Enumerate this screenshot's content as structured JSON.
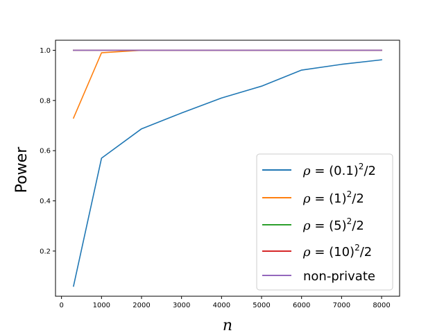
{
  "chart_data": {
    "type": "line",
    "xlabel": "n",
    "ylabel": "Power",
    "xlim": [
      -150,
      8450
    ],
    "ylim": [
      0.02,
      1.04
    ],
    "xticks": [
      0,
      1000,
      2000,
      3000,
      4000,
      5000,
      6000,
      7000,
      8000
    ],
    "yticks": [
      0.2,
      0.4,
      0.6,
      0.8,
      1.0
    ],
    "grid": false,
    "legend_position": "lower right",
    "series": [
      {
        "name": "ρ = (0.1)²/2",
        "color": "#1f77b4",
        "x": [
          300,
          1000,
          2000,
          3000,
          4000,
          5000,
          6000,
          7000,
          8000
        ],
        "y": [
          0.06,
          0.57,
          0.687,
          0.75,
          0.81,
          0.857,
          0.921,
          0.944,
          0.962
        ]
      },
      {
        "name": "ρ = (1)²/2",
        "color": "#ff7f0e",
        "x": [
          300,
          1000,
          2000,
          3000,
          4000,
          5000,
          6000,
          7000,
          8000
        ],
        "y": [
          0.73,
          0.99,
          1.0,
          1.0,
          1.0,
          1.0,
          1.0,
          1.0,
          1.0
        ]
      },
      {
        "name": "ρ = (5)²/2",
        "color": "#2ca02c",
        "x": [
          300,
          1000,
          2000,
          3000,
          4000,
          5000,
          6000,
          7000,
          8000
        ],
        "y": [
          1.0,
          1.0,
          1.0,
          1.0,
          1.0,
          1.0,
          1.0,
          1.0,
          1.0
        ]
      },
      {
        "name": "ρ = (10)²/2",
        "color": "#d62728",
        "x": [
          300,
          1000,
          2000,
          3000,
          4000,
          5000,
          6000,
          7000,
          8000
        ],
        "y": [
          1.0,
          1.0,
          1.0,
          1.0,
          1.0,
          1.0,
          1.0,
          1.0,
          1.0
        ]
      },
      {
        "name": "non-private",
        "color": "#9467bd",
        "x": [
          300,
          1000,
          2000,
          3000,
          4000,
          5000,
          6000,
          7000,
          8000
        ],
        "y": [
          1.0,
          1.0,
          1.0,
          1.0,
          1.0,
          1.0,
          1.0,
          1.0,
          1.0
        ]
      }
    ],
    "legend_labels": [
      {
        "rho": "ρ",
        "eq": " = (0.1)",
        "sup": "2",
        "tail": "/2"
      },
      {
        "rho": "ρ",
        "eq": " = (1)",
        "sup": "2",
        "tail": "/2"
      },
      {
        "rho": "ρ",
        "eq": " = (5)",
        "sup": "2",
        "tail": "/2"
      },
      {
        "rho": "ρ",
        "eq": " = (10)",
        "sup": "2",
        "tail": "/2"
      },
      {
        "plain": "non-private"
      }
    ]
  }
}
